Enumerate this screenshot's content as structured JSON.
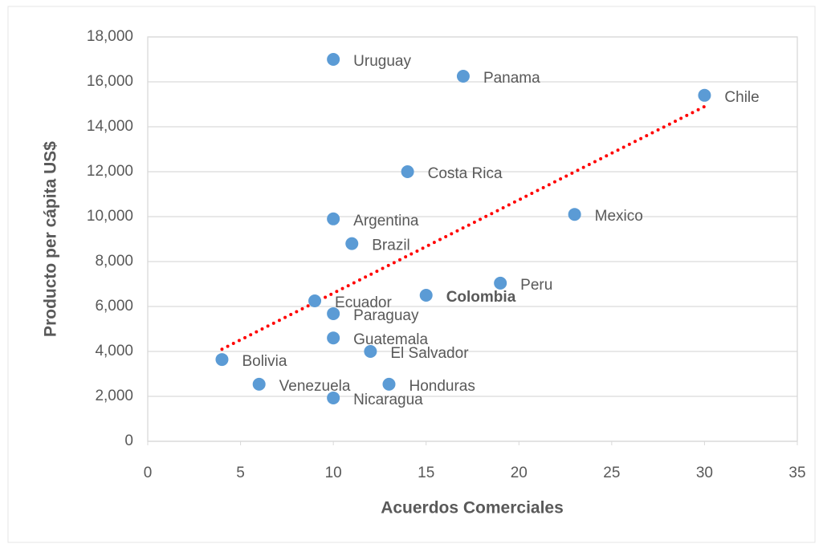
{
  "chart_data": {
    "type": "scatter",
    "x_label": "Acuerdos Comerciales",
    "y_label": "Producto per cápita US$",
    "labels": [
      "Uruguay",
      "Panama",
      "Chile",
      "Costa Rica",
      "Argentina",
      "Mexico",
      "Brazil",
      "Peru",
      "Colombia",
      "Ecuador",
      "Paraguay",
      "Guatemala",
      "El Salvador",
      "Bolivia",
      "Venezuela",
      "Honduras",
      "Nicaragua"
    ],
    "x": [
      10,
      17,
      30,
      14,
      10,
      23,
      11,
      19,
      15,
      9,
      10,
      10,
      12,
      4,
      6,
      13,
      10
    ],
    "values": [
      17000,
      16250,
      15400,
      12000,
      9900,
      10100,
      8800,
      7040,
      6500,
      6250,
      5680,
      4600,
      4000,
      3640,
      2540,
      2540,
      1930
    ],
    "color": "#5b9bd5",
    "label_colors": [
      "#404040",
      "#404040",
      "#404040",
      "#404040",
      "#404040",
      "#404040",
      "#404040",
      "#404040",
      "#ff0000",
      "#404040",
      "#404040",
      "#404040",
      "#404040",
      "#404040",
      "#404040",
      "#404040",
      "#404040"
    ],
    "trendline": {
      "x": [
        4,
        30
      ],
      "y": [
        4100,
        14900
      ],
      "color": "#ff0000",
      "style": "dotted"
    },
    "xlim": [
      0,
      35
    ],
    "xticks": [
      0,
      5,
      10,
      15,
      20,
      25,
      30,
      35
    ],
    "ylim": [
      0,
      18000
    ],
    "yticks": [
      0,
      {
        "value": 2000,
        "label": "2,000"
      },
      {
        "value": 4000,
        "label": "4,000"
      },
      {
        "value": 6000,
        "label": "6,000"
      },
      {
        "value": 8000,
        "label": "8,000"
      },
      {
        "value": 10000,
        "label": "10,000"
      },
      {
        "value": 12000,
        "label": "12,000"
      },
      {
        "value": 14000,
        "label": "14,000"
      },
      {
        "value": 16000,
        "label": "16,000"
      },
      {
        "value": 18000,
        "label": "18,000"
      }
    ],
    "grid": true
  }
}
